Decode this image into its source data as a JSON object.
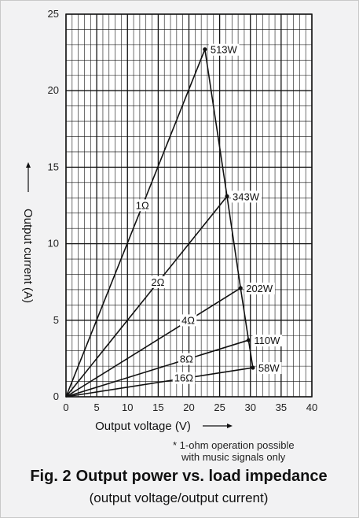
{
  "chart_data": {
    "type": "line",
    "title": "Output power vs. load impedance",
    "figure_label": "Fig. 2",
    "subtitle": "(output voltage/output current)",
    "xlabel": "Output voltage (V)",
    "ylabel": "Output current (A)",
    "xlim": [
      0,
      40
    ],
    "ylim": [
      0,
      25
    ],
    "x_ticks": [
      "0",
      "5",
      "10",
      "15",
      "20",
      "25",
      "30",
      "35",
      "40"
    ],
    "y_ticks": [
      "0",
      "5",
      "10",
      "15",
      "20",
      "25"
    ],
    "grid": true,
    "series": [
      {
        "name": "1Ω",
        "x": [
          0,
          22.6
        ],
        "y": [
          0,
          22.7
        ],
        "power_label": "513W"
      },
      {
        "name": "2Ω",
        "x": [
          0,
          26.2
        ],
        "y": [
          0,
          13.1
        ],
        "power_label": "343W"
      },
      {
        "name": "4Ω",
        "x": [
          0,
          28.4
        ],
        "y": [
          0,
          7.1
        ],
        "power_label": "202W"
      },
      {
        "name": "8Ω",
        "x": [
          0,
          29.7
        ],
        "y": [
          0,
          3.7
        ],
        "power_label": "110W"
      },
      {
        "name": "16Ω",
        "x": [
          0,
          30.4
        ],
        "y": [
          0,
          1.9
        ],
        "power_label": "58W"
      }
    ],
    "envelope": {
      "x": [
        22.6,
        26.2,
        28.4,
        29.7,
        30.4
      ],
      "y": [
        22.7,
        13.1,
        7.1,
        3.7,
        1.9
      ]
    },
    "note_lines": [
      "* 1-ohm operation possible",
      "with music signals only"
    ]
  }
}
